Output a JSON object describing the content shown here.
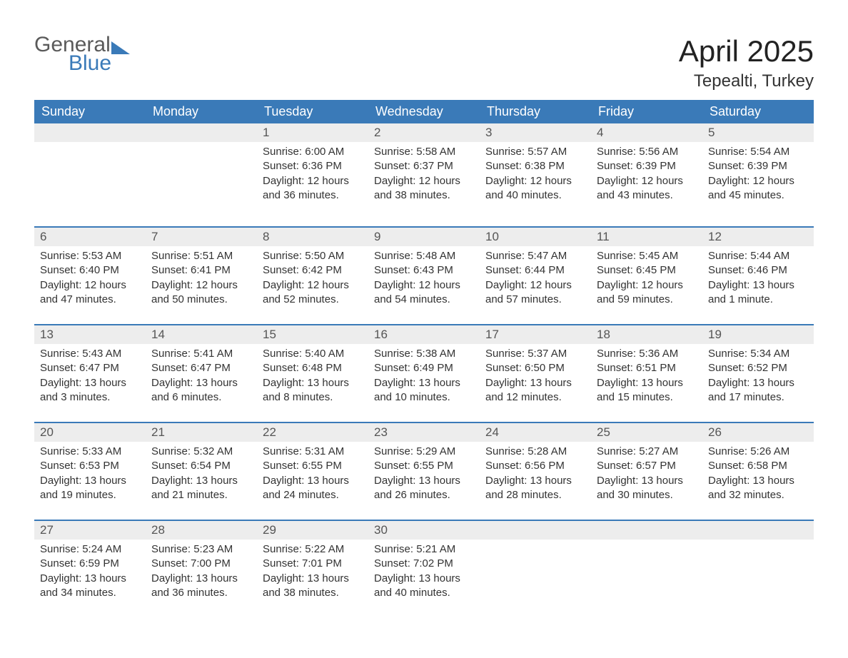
{
  "logo": {
    "word1": "General",
    "word2": "Blue"
  },
  "title": "April 2025",
  "location": "Tepealti, Turkey",
  "colors": {
    "header_bg": "#3a7ab8",
    "header_text": "#ffffff",
    "daynum_bg": "#ededed",
    "row_divider": "#3a7ab8",
    "body_text": "#333333",
    "logo_general": "#5a5a5a",
    "logo_blue": "#3a7ab8",
    "background": "#ffffff"
  },
  "typography": {
    "title_fontsize": 42,
    "location_fontsize": 24,
    "weekday_fontsize": 18,
    "daynum_fontsize": 17,
    "body_fontsize": 15
  },
  "weekdays": [
    "Sunday",
    "Monday",
    "Tuesday",
    "Wednesday",
    "Thursday",
    "Friday",
    "Saturday"
  ],
  "weeks": [
    [
      null,
      null,
      {
        "n": "1",
        "sunrise": "Sunrise: 6:00 AM",
        "sunset": "Sunset: 6:36 PM",
        "d1": "Daylight: 12 hours",
        "d2": "and 36 minutes."
      },
      {
        "n": "2",
        "sunrise": "Sunrise: 5:58 AM",
        "sunset": "Sunset: 6:37 PM",
        "d1": "Daylight: 12 hours",
        "d2": "and 38 minutes."
      },
      {
        "n": "3",
        "sunrise": "Sunrise: 5:57 AM",
        "sunset": "Sunset: 6:38 PM",
        "d1": "Daylight: 12 hours",
        "d2": "and 40 minutes."
      },
      {
        "n": "4",
        "sunrise": "Sunrise: 5:56 AM",
        "sunset": "Sunset: 6:39 PM",
        "d1": "Daylight: 12 hours",
        "d2": "and 43 minutes."
      },
      {
        "n": "5",
        "sunrise": "Sunrise: 5:54 AM",
        "sunset": "Sunset: 6:39 PM",
        "d1": "Daylight: 12 hours",
        "d2": "and 45 minutes."
      }
    ],
    [
      {
        "n": "6",
        "sunrise": "Sunrise: 5:53 AM",
        "sunset": "Sunset: 6:40 PM",
        "d1": "Daylight: 12 hours",
        "d2": "and 47 minutes."
      },
      {
        "n": "7",
        "sunrise": "Sunrise: 5:51 AM",
        "sunset": "Sunset: 6:41 PM",
        "d1": "Daylight: 12 hours",
        "d2": "and 50 minutes."
      },
      {
        "n": "8",
        "sunrise": "Sunrise: 5:50 AM",
        "sunset": "Sunset: 6:42 PM",
        "d1": "Daylight: 12 hours",
        "d2": "and 52 minutes."
      },
      {
        "n": "9",
        "sunrise": "Sunrise: 5:48 AM",
        "sunset": "Sunset: 6:43 PM",
        "d1": "Daylight: 12 hours",
        "d2": "and 54 minutes."
      },
      {
        "n": "10",
        "sunrise": "Sunrise: 5:47 AM",
        "sunset": "Sunset: 6:44 PM",
        "d1": "Daylight: 12 hours",
        "d2": "and 57 minutes."
      },
      {
        "n": "11",
        "sunrise": "Sunrise: 5:45 AM",
        "sunset": "Sunset: 6:45 PM",
        "d1": "Daylight: 12 hours",
        "d2": "and 59 minutes."
      },
      {
        "n": "12",
        "sunrise": "Sunrise: 5:44 AM",
        "sunset": "Sunset: 6:46 PM",
        "d1": "Daylight: 13 hours",
        "d2": "and 1 minute."
      }
    ],
    [
      {
        "n": "13",
        "sunrise": "Sunrise: 5:43 AM",
        "sunset": "Sunset: 6:47 PM",
        "d1": "Daylight: 13 hours",
        "d2": "and 3 minutes."
      },
      {
        "n": "14",
        "sunrise": "Sunrise: 5:41 AM",
        "sunset": "Sunset: 6:47 PM",
        "d1": "Daylight: 13 hours",
        "d2": "and 6 minutes."
      },
      {
        "n": "15",
        "sunrise": "Sunrise: 5:40 AM",
        "sunset": "Sunset: 6:48 PM",
        "d1": "Daylight: 13 hours",
        "d2": "and 8 minutes."
      },
      {
        "n": "16",
        "sunrise": "Sunrise: 5:38 AM",
        "sunset": "Sunset: 6:49 PM",
        "d1": "Daylight: 13 hours",
        "d2": "and 10 minutes."
      },
      {
        "n": "17",
        "sunrise": "Sunrise: 5:37 AM",
        "sunset": "Sunset: 6:50 PM",
        "d1": "Daylight: 13 hours",
        "d2": "and 12 minutes."
      },
      {
        "n": "18",
        "sunrise": "Sunrise: 5:36 AM",
        "sunset": "Sunset: 6:51 PM",
        "d1": "Daylight: 13 hours",
        "d2": "and 15 minutes."
      },
      {
        "n": "19",
        "sunrise": "Sunrise: 5:34 AM",
        "sunset": "Sunset: 6:52 PM",
        "d1": "Daylight: 13 hours",
        "d2": "and 17 minutes."
      }
    ],
    [
      {
        "n": "20",
        "sunrise": "Sunrise: 5:33 AM",
        "sunset": "Sunset: 6:53 PM",
        "d1": "Daylight: 13 hours",
        "d2": "and 19 minutes."
      },
      {
        "n": "21",
        "sunrise": "Sunrise: 5:32 AM",
        "sunset": "Sunset: 6:54 PM",
        "d1": "Daylight: 13 hours",
        "d2": "and 21 minutes."
      },
      {
        "n": "22",
        "sunrise": "Sunrise: 5:31 AM",
        "sunset": "Sunset: 6:55 PM",
        "d1": "Daylight: 13 hours",
        "d2": "and 24 minutes."
      },
      {
        "n": "23",
        "sunrise": "Sunrise: 5:29 AM",
        "sunset": "Sunset: 6:55 PM",
        "d1": "Daylight: 13 hours",
        "d2": "and 26 minutes."
      },
      {
        "n": "24",
        "sunrise": "Sunrise: 5:28 AM",
        "sunset": "Sunset: 6:56 PM",
        "d1": "Daylight: 13 hours",
        "d2": "and 28 minutes."
      },
      {
        "n": "25",
        "sunrise": "Sunrise: 5:27 AM",
        "sunset": "Sunset: 6:57 PM",
        "d1": "Daylight: 13 hours",
        "d2": "and 30 minutes."
      },
      {
        "n": "26",
        "sunrise": "Sunrise: 5:26 AM",
        "sunset": "Sunset: 6:58 PM",
        "d1": "Daylight: 13 hours",
        "d2": "and 32 minutes."
      }
    ],
    [
      {
        "n": "27",
        "sunrise": "Sunrise: 5:24 AM",
        "sunset": "Sunset: 6:59 PM",
        "d1": "Daylight: 13 hours",
        "d2": "and 34 minutes."
      },
      {
        "n": "28",
        "sunrise": "Sunrise: 5:23 AM",
        "sunset": "Sunset: 7:00 PM",
        "d1": "Daylight: 13 hours",
        "d2": "and 36 minutes."
      },
      {
        "n": "29",
        "sunrise": "Sunrise: 5:22 AM",
        "sunset": "Sunset: 7:01 PM",
        "d1": "Daylight: 13 hours",
        "d2": "and 38 minutes."
      },
      {
        "n": "30",
        "sunrise": "Sunrise: 5:21 AM",
        "sunset": "Sunset: 7:02 PM",
        "d1": "Daylight: 13 hours",
        "d2": "and 40 minutes."
      },
      null,
      null,
      null
    ]
  ]
}
